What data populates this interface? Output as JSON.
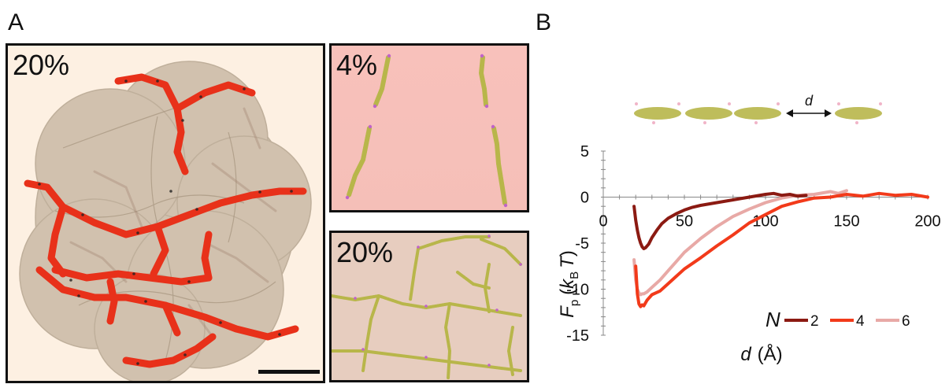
{
  "panels": {
    "a_letter": "A",
    "b_letter": "B",
    "main_label": "20%",
    "top_label": "4%",
    "bottom_label": "20%"
  },
  "colors": {
    "vesicle": "#cbbba7",
    "chain_red": "#e8311a",
    "chain_dots": "#222222",
    "peptoid": "#b8b64a",
    "peptoid_tip": "#c063c9",
    "series_2": "#8b1a12",
    "series_4": "#f23a1a",
    "series_6": "#e8a9a6"
  },
  "schematic": {
    "distance_label": "d"
  },
  "chart_data": {
    "type": "line",
    "xlabel": "d (Å)",
    "xlabel_main": "d",
    "xlabel_unit": "(Å)",
    "ylabel": "Fp (kB T)",
    "ylabel_F": "F",
    "ylabel_p": "p",
    "ylabel_open": "(",
    "ylabel_k": "k",
    "ylabel_B": "B",
    "ylabel_T": "T",
    "ylabel_close": ")",
    "xlim": [
      0,
      200
    ],
    "ylim": [
      -15,
      5
    ],
    "x_ticks": [
      0,
      50,
      100,
      150,
      200
    ],
    "y_ticks": [
      5,
      0,
      -5,
      -10,
      -15
    ],
    "grid": false,
    "legend_title": "N",
    "legend_position": "bottom-right",
    "series": [
      {
        "name": "2",
        "x": [
          19,
          20,
          21,
          22,
          23,
          24,
          25,
          26,
          28,
          30,
          33,
          36,
          40,
          45,
          50,
          55,
          60,
          70,
          80,
          90,
          100,
          105,
          110,
          115,
          120,
          125
        ],
        "y": [
          -1.0,
          -2.5,
          -3.6,
          -4.4,
          -5.0,
          -5.4,
          -5.6,
          -5.5,
          -5.1,
          -4.4,
          -3.6,
          -2.9,
          -2.3,
          -1.8,
          -1.4,
          -1.1,
          -0.9,
          -0.6,
          -0.3,
          0.0,
          0.3,
          0.4,
          0.2,
          0.3,
          0.1,
          0.2
        ]
      },
      {
        "name": "4",
        "x": [
          20,
          21,
          22,
          23,
          24,
          25,
          27,
          30,
          35,
          40,
          45,
          50,
          60,
          70,
          80,
          90,
          100,
          110,
          120,
          130,
          140,
          150,
          160,
          170,
          180,
          190,
          200
        ],
        "y": [
          -7.5,
          -10.5,
          -11.6,
          -11.9,
          -11.7,
          -11.8,
          -11.2,
          -10.6,
          -10.2,
          -9.4,
          -8.6,
          -7.8,
          -6.6,
          -5.3,
          -4.1,
          -2.8,
          -1.9,
          -1.0,
          -0.5,
          -0.1,
          0.0,
          0.3,
          0.1,
          0.4,
          0.2,
          0.3,
          0.0
        ]
      },
      {
        "name": "6",
        "x": [
          19,
          20,
          21,
          22,
          23,
          24,
          25,
          27,
          30,
          35,
          40,
          45,
          50,
          60,
          70,
          80,
          90,
          100,
          110,
          120,
          130,
          140,
          145,
          150
        ],
        "y": [
          -6.8,
          -9.0,
          -10.0,
          -10.4,
          -10.6,
          -10.5,
          -10.5,
          -10.3,
          -9.8,
          -9.0,
          -8.0,
          -7.0,
          -6.0,
          -4.5,
          -3.2,
          -2.1,
          -1.3,
          -0.6,
          -0.1,
          0.2,
          0.3,
          0.6,
          0.4,
          0.7
        ]
      }
    ]
  }
}
